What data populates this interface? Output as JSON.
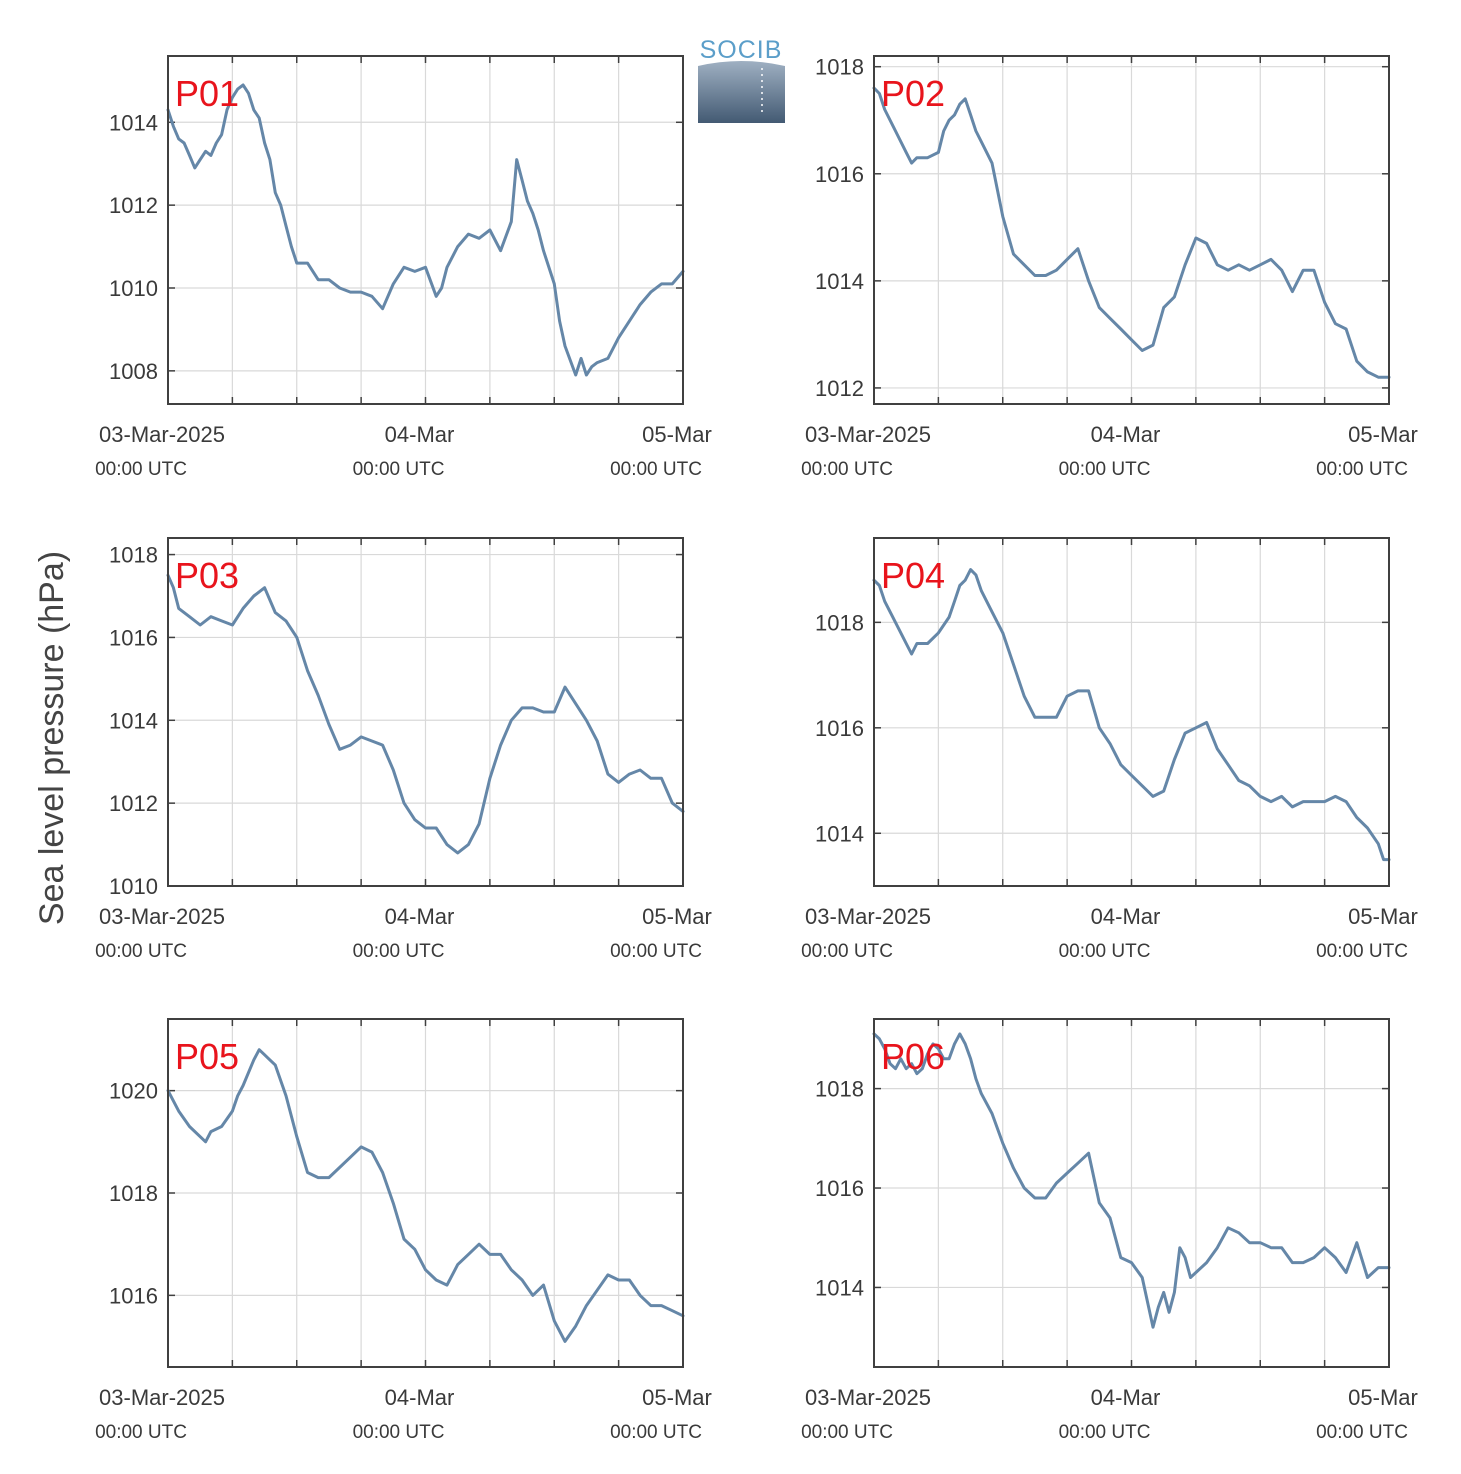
{
  "figure": {
    "ylabel": "Sea level pressure (hPa)",
    "logo_text": "SOCIB",
    "colors": {
      "line": "#6587a8",
      "label": "#e8141c",
      "grid": "#d9d9d9",
      "frame": "#404040"
    }
  },
  "chart_data": [
    {
      "type": "line",
      "title": "P01",
      "x_ticks": [
        "03-Mar-2025",
        "04-Mar",
        "05-Mar"
      ],
      "x_tick_sub": [
        "00:00 UTC",
        "00:00 UTC",
        "00:00 UTC"
      ],
      "xlim": [
        0,
        48
      ],
      "ylim": [
        1007.2,
        1015.6
      ],
      "yticks": [
        1008,
        1010,
        1012,
        1014
      ],
      "x": [
        0,
        0.5,
        1,
        1.5,
        2,
        2.5,
        3,
        3.5,
        4,
        4.5,
        5,
        5.5,
        6,
        6.5,
        7,
        7.5,
        8,
        8.5,
        9,
        9.5,
        10,
        10.5,
        11,
        11.5,
        12,
        13,
        14,
        15,
        16,
        17,
        18,
        19,
        20,
        21,
        22,
        23,
        24,
        25,
        25.5,
        26,
        27,
        28,
        29,
        30,
        31,
        32,
        32.5,
        33,
        33.5,
        34,
        34.5,
        35,
        36,
        36.5,
        37,
        38,
        38.5,
        39,
        39.5,
        40,
        41,
        42,
        43,
        44,
        45,
        46,
        47,
        48
      ],
      "y": [
        1014.3,
        1013.9,
        1013.6,
        1013.5,
        1013.2,
        1012.9,
        1013.1,
        1013.3,
        1013.2,
        1013.5,
        1013.7,
        1014.3,
        1014.6,
        1014.8,
        1014.9,
        1014.7,
        1014.3,
        1014.1,
        1013.5,
        1013.1,
        1012.3,
        1012.0,
        1011.5,
        1011.0,
        1010.6,
        1010.6,
        1010.2,
        1010.2,
        1010.0,
        1009.9,
        1009.9,
        1009.8,
        1009.5,
        1010.1,
        1010.5,
        1010.4,
        1010.5,
        1009.8,
        1010.0,
        1010.5,
        1011.0,
        1011.3,
        1011.2,
        1011.4,
        1010.9,
        1011.6,
        1013.1,
        1012.6,
        1012.1,
        1011.8,
        1011.4,
        1010.9,
        1010.1,
        1009.2,
        1008.6,
        1007.9,
        1008.3,
        1007.9,
        1008.1,
        1008.2,
        1008.3,
        1008.8,
        1009.2,
        1009.6,
        1009.9,
        1010.1,
        1010.1,
        1010.4
      ]
    },
    {
      "type": "line",
      "title": "P02",
      "x_ticks": [
        "03-Mar-2025",
        "04-Mar",
        "05-Mar"
      ],
      "x_tick_sub": [
        "00:00 UTC",
        "00:00 UTC",
        "00:00 UTC"
      ],
      "xlim": [
        0,
        48
      ],
      "ylim": [
        1011.7,
        1018.2
      ],
      "yticks": [
        1012,
        1014,
        1016,
        1018
      ],
      "x": [
        0,
        0.5,
        1,
        2,
        3,
        3.5,
        4,
        5,
        6,
        6.5,
        7,
        7.5,
        8,
        8.5,
        9,
        9.5,
        10,
        11,
        12,
        13,
        14,
        15,
        16,
        17,
        18,
        19,
        20,
        21,
        22,
        23,
        24,
        25,
        26,
        27,
        28,
        29,
        30,
        31,
        32,
        33,
        34,
        35,
        36,
        37,
        38,
        39,
        40,
        41,
        42,
        43,
        44,
        45,
        46,
        47,
        48
      ],
      "y": [
        1017.6,
        1017.5,
        1017.2,
        1016.8,
        1016.4,
        1016.2,
        1016.3,
        1016.3,
        1016.4,
        1016.8,
        1017.0,
        1017.1,
        1017.3,
        1017.4,
        1017.1,
        1016.8,
        1016.6,
        1016.2,
        1015.2,
        1014.5,
        1014.3,
        1014.1,
        1014.1,
        1014.2,
        1014.4,
        1014.6,
        1014.0,
        1013.5,
        1013.3,
        1013.1,
        1012.9,
        1012.7,
        1012.8,
        1013.5,
        1013.7,
        1014.3,
        1014.8,
        1014.7,
        1014.3,
        1014.2,
        1014.3,
        1014.2,
        1014.3,
        1014.4,
        1014.2,
        1013.8,
        1014.2,
        1014.2,
        1013.6,
        1013.2,
        1013.1,
        1012.5,
        1012.3,
        1012.2,
        1012.2
      ]
    },
    {
      "type": "line",
      "title": "P03",
      "x_ticks": [
        "03-Mar-2025",
        "04-Mar",
        "05-Mar"
      ],
      "x_tick_sub": [
        "00:00 UTC",
        "00:00 UTC",
        "00:00 UTC"
      ],
      "xlim": [
        0,
        48
      ],
      "ylim": [
        1010,
        1018.4
      ],
      "yticks": [
        1010,
        1012,
        1014,
        1016,
        1018
      ],
      "x": [
        0,
        0.5,
        1,
        2,
        3,
        4,
        5,
        6,
        7,
        8,
        9,
        10,
        11,
        12,
        13,
        14,
        15,
        16,
        17,
        18,
        19,
        20,
        21,
        22,
        23,
        24,
        25,
        26,
        27,
        28,
        29,
        30,
        31,
        32,
        33,
        34,
        35,
        36,
        37,
        38,
        39,
        40,
        41,
        42,
        43,
        44,
        45,
        46,
        47,
        48
      ],
      "y": [
        1017.5,
        1017.2,
        1016.7,
        1016.5,
        1016.3,
        1016.5,
        1016.4,
        1016.3,
        1016.7,
        1017.0,
        1017.2,
        1016.6,
        1016.4,
        1016.0,
        1015.2,
        1014.6,
        1013.9,
        1013.3,
        1013.4,
        1013.6,
        1013.5,
        1013.4,
        1012.8,
        1012.0,
        1011.6,
        1011.4,
        1011.4,
        1011.0,
        1010.8,
        1011.0,
        1011.5,
        1012.6,
        1013.4,
        1014.0,
        1014.3,
        1014.3,
        1014.2,
        1014.2,
        1014.8,
        1014.4,
        1014.0,
        1013.5,
        1012.7,
        1012.5,
        1012.7,
        1012.8,
        1012.6,
        1012.6,
        1012.0,
        1011.8
      ]
    },
    {
      "type": "line",
      "title": "P04",
      "x_ticks": [
        "03-Mar-2025",
        "04-Mar",
        "05-Mar"
      ],
      "x_tick_sub": [
        "00:00 UTC",
        "00:00 UTC",
        "00:00 UTC"
      ],
      "xlim": [
        0,
        48
      ],
      "ylim": [
        1013,
        1019.6
      ],
      "yticks": [
        1014,
        1016,
        1018
      ],
      "x": [
        0,
        0.5,
        1,
        2,
        3,
        3.5,
        4,
        5,
        6,
        7,
        7.5,
        8,
        8.5,
        9,
        9.5,
        10,
        11,
        12,
        13,
        14,
        15,
        16,
        17,
        18,
        19,
        20,
        21,
        22,
        23,
        24,
        25,
        26,
        27,
        28,
        29,
        30,
        31,
        32,
        33,
        34,
        35,
        36,
        37,
        38,
        39,
        40,
        41,
        42,
        43,
        44,
        45,
        46,
        47,
        47.5,
        48
      ],
      "y": [
        1018.8,
        1018.7,
        1018.4,
        1018.0,
        1017.6,
        1017.4,
        1017.6,
        1017.6,
        1017.8,
        1018.1,
        1018.4,
        1018.7,
        1018.8,
        1019.0,
        1018.9,
        1018.6,
        1018.2,
        1017.8,
        1017.2,
        1016.6,
        1016.2,
        1016.2,
        1016.2,
        1016.6,
        1016.7,
        1016.7,
        1016.0,
        1015.7,
        1015.3,
        1015.1,
        1014.9,
        1014.7,
        1014.8,
        1015.4,
        1015.9,
        1016.0,
        1016.1,
        1015.6,
        1015.3,
        1015.0,
        1014.9,
        1014.7,
        1014.6,
        1014.7,
        1014.5,
        1014.6,
        1014.6,
        1014.6,
        1014.7,
        1014.6,
        1014.3,
        1014.1,
        1013.8,
        1013.5,
        1013.5
      ]
    },
    {
      "type": "line",
      "title": "P05",
      "x_ticks": [
        "03-Mar-2025",
        "04-Mar",
        "05-Mar"
      ],
      "x_tick_sub": [
        "00:00 UTC",
        "00:00 UTC",
        "00:00 UTC"
      ],
      "xlim": [
        0,
        48
      ],
      "ylim": [
        1014.6,
        1021.4
      ],
      "yticks": [
        1016,
        1018,
        1020
      ],
      "x": [
        0,
        0.5,
        1,
        2,
        3,
        3.5,
        4,
        5,
        6,
        6.5,
        7,
        8,
        8.5,
        9,
        9.5,
        10,
        11,
        11.5,
        12,
        13,
        14,
        15,
        16,
        17,
        18,
        19,
        20,
        21,
        22,
        23,
        24,
        25,
        26,
        27,
        28,
        29,
        30,
        31,
        32,
        33,
        34,
        35,
        36,
        37,
        38,
        39,
        40,
        41,
        42,
        43,
        44,
        45,
        46,
        47,
        48
      ],
      "y": [
        1020.0,
        1019.8,
        1019.6,
        1019.3,
        1019.1,
        1019.0,
        1019.2,
        1019.3,
        1019.6,
        1019.9,
        1020.1,
        1020.6,
        1020.8,
        1020.7,
        1020.6,
        1020.5,
        1019.9,
        1019.5,
        1019.1,
        1018.4,
        1018.3,
        1018.3,
        1018.5,
        1018.7,
        1018.9,
        1018.8,
        1018.4,
        1017.8,
        1017.1,
        1016.9,
        1016.5,
        1016.3,
        1016.2,
        1016.6,
        1016.8,
        1017.0,
        1016.8,
        1016.8,
        1016.5,
        1016.3,
        1016.0,
        1016.2,
        1015.5,
        1015.1,
        1015.4,
        1015.8,
        1016.1,
        1016.4,
        1016.3,
        1016.3,
        1016.0,
        1015.8,
        1015.8,
        1015.7,
        1015.6
      ]
    },
    {
      "type": "line",
      "title": "P06",
      "x_ticks": [
        "03-Mar-2025",
        "04-Mar",
        "05-Mar"
      ],
      "x_tick_sub": [
        "00:00 UTC",
        "00:00 UTC",
        "00:00 UTC"
      ],
      "xlim": [
        0,
        48
      ],
      "ylim": [
        1012.4,
        1019.4
      ],
      "yticks": [
        1014,
        1016,
        1018
      ],
      "x": [
        0,
        0.5,
        1,
        1.5,
        2,
        2.5,
        3,
        3.5,
        4,
        4.5,
        5,
        5.5,
        6,
        6.5,
        7,
        7.5,
        8,
        8.5,
        9,
        9.5,
        10,
        11,
        12,
        13,
        14,
        15,
        16,
        17,
        18,
        19,
        20,
        21,
        22,
        23,
        24,
        25,
        26,
        26.5,
        27,
        27.5,
        28,
        28.5,
        29,
        29.5,
        30,
        31,
        32,
        33,
        34,
        35,
        36,
        37,
        38,
        39,
        40,
        41,
        42,
        43,
        44,
        45,
        46,
        47,
        48
      ],
      "y": [
        1019.1,
        1019.0,
        1018.8,
        1018.5,
        1018.4,
        1018.6,
        1018.4,
        1018.5,
        1018.3,
        1018.4,
        1018.7,
        1018.9,
        1018.8,
        1018.6,
        1018.6,
        1018.9,
        1019.1,
        1018.9,
        1018.6,
        1018.2,
        1017.9,
        1017.5,
        1016.9,
        1016.4,
        1016.0,
        1015.8,
        1015.8,
        1016.1,
        1016.3,
        1016.5,
        1016.7,
        1015.7,
        1015.4,
        1014.6,
        1014.5,
        1014.2,
        1013.2,
        1013.6,
        1013.9,
        1013.5,
        1013.9,
        1014.8,
        1014.6,
        1014.2,
        1014.3,
        1014.5,
        1014.8,
        1015.2,
        1015.1,
        1014.9,
        1014.9,
        1014.8,
        1014.8,
        1014.5,
        1014.5,
        1014.6,
        1014.8,
        1014.6,
        1014.3,
        1014.9,
        1014.2,
        1014.4,
        1014.4
      ]
    }
  ]
}
